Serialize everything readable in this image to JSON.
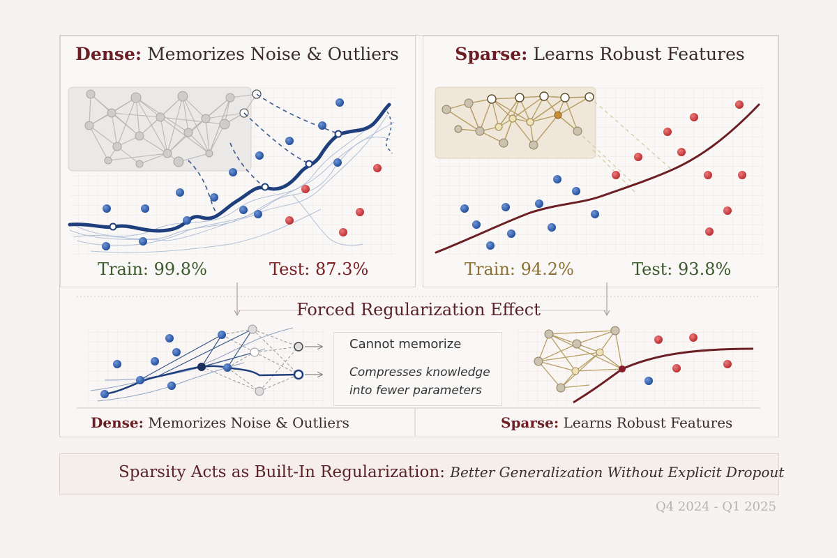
{
  "dense_panel": {
    "title_key": "Dense:",
    "title_rest": " Memorizes Noise & Outliers",
    "train": "Train: 99.8%",
    "test": "Test: 87.3%"
  },
  "sparse_panel": {
    "title_key": "Sparse:",
    "title_rest": " Learns Robust Features",
    "train": "Train: 94.2%",
    "test": "Test: 93.8%"
  },
  "middle": {
    "title": "Forced Regularization Effect",
    "callout_line1": "Cannot memorize",
    "callout_line2": "Compresses knowledge",
    "callout_line3": "into fewer parameters",
    "dense_key": "Dense:",
    "dense_rest": " Memorizes Noise & Outliers",
    "sparse_key": "Sparse:",
    "sparse_rest": " Learns Robust Features"
  },
  "banner": {
    "title": "Sparsity Acts as Built-In Regularization:",
    "subtitle": "Better Generalization Without Explicit Dropout",
    "icon": "trophy-icon"
  },
  "footer": {
    "date_range": "Q4 2024 - Q1 2025"
  },
  "colors": {
    "blue": "#2e5aa8",
    "red": "#c0363a",
    "maroon": "#6b1f24",
    "gold": "#a88a4a"
  }
}
